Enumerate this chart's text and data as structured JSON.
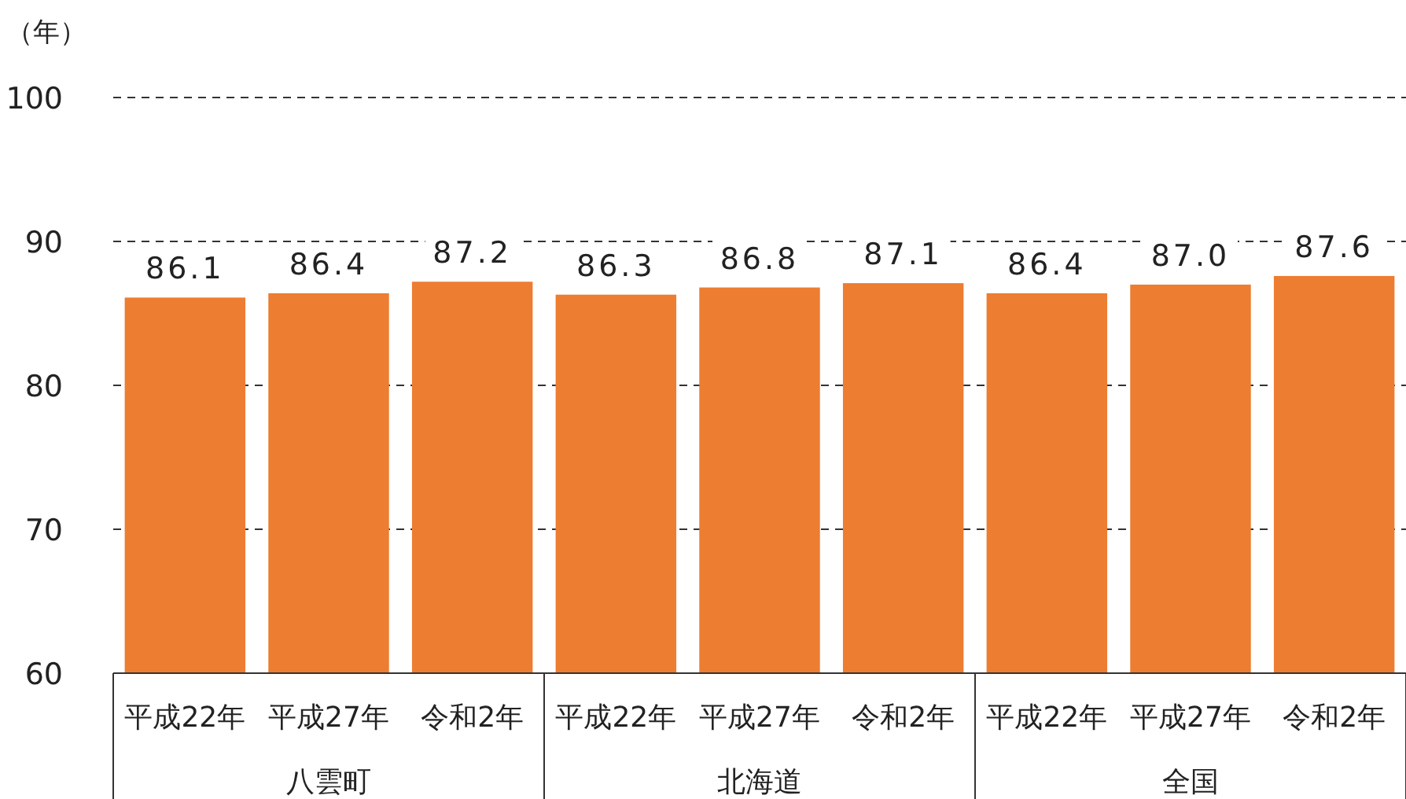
{
  "chart_data": {
    "type": "bar",
    "ylabel": "（年）",
    "categories": [
      "平成22年",
      "平成27年",
      "令和2年",
      "平成22年",
      "平成27年",
      "令和2年",
      "平成22年",
      "平成27年",
      "令和2年"
    ],
    "series": [
      {
        "color": "#ed7d31",
        "values": [
          86.1,
          86.4,
          87.2,
          86.3,
          86.8,
          87.1,
          86.4,
          87.0,
          87.6
        ],
        "value_labels": [
          "86.1",
          "86.4",
          "87.2",
          "86.3",
          "86.8",
          "87.1",
          "86.4",
          "87.0",
          "87.6"
        ]
      }
    ],
    "annotations": [
      "八雲町",
      "北海道",
      "全国"
    ],
    "ylim": [
      60,
      100
    ],
    "yticks": [
      60,
      70,
      80,
      90,
      100
    ],
    "grid": "y",
    "line_style": "dashed"
  }
}
